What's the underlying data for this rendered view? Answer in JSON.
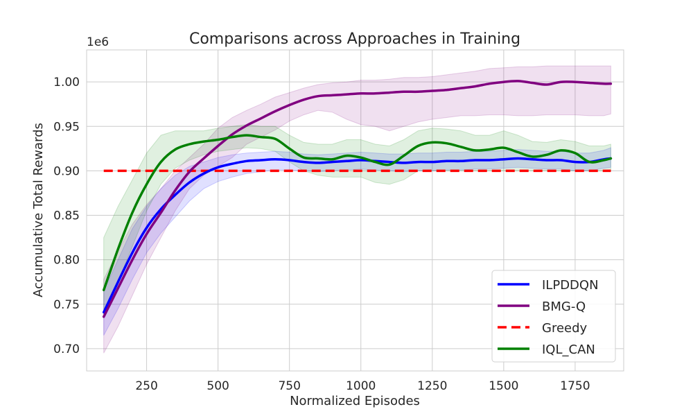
{
  "chart_data": {
    "type": "line",
    "title": "Comparisons across Approaches in Training",
    "xlabel": "Normalized Episodes",
    "ylabel": "Accumulative Total Rewards",
    "y_scale_label": "1e6",
    "xlim": [
      40,
      1920
    ],
    "ylim": [
      0.675,
      1.036
    ],
    "xticks": [
      250,
      500,
      750,
      1000,
      1250,
      1500,
      1750
    ],
    "yticks": [
      0.7,
      0.75,
      0.8,
      0.85,
      0.9,
      0.95,
      1.0
    ],
    "ytick_labels": [
      "0.70",
      "0.75",
      "0.80",
      "0.85",
      "0.90",
      "0.95",
      "1.00"
    ],
    "grid": true,
    "legend_position": "lower-right",
    "series": [
      {
        "name": "ILPDDQN",
        "color": "#0000ff",
        "style": "solid",
        "x": [
          100,
          150,
          200,
          250,
          300,
          350,
          400,
          450,
          500,
          550,
          600,
          650,
          700,
          750,
          800,
          850,
          900,
          950,
          1000,
          1050,
          1100,
          1150,
          1200,
          1250,
          1300,
          1350,
          1400,
          1450,
          1500,
          1550,
          1600,
          1650,
          1700,
          1750,
          1800,
          1850,
          1875
        ],
        "values": [
          0.741,
          0.775,
          0.808,
          0.836,
          0.857,
          0.873,
          0.887,
          0.897,
          0.904,
          0.908,
          0.911,
          0.912,
          0.913,
          0.912,
          0.91,
          0.909,
          0.91,
          0.911,
          0.912,
          0.911,
          0.91,
          0.909,
          0.91,
          0.91,
          0.911,
          0.911,
          0.912,
          0.912,
          0.913,
          0.914,
          0.913,
          0.912,
          0.912,
          0.91,
          0.91,
          0.913,
          0.914
        ],
        "lower": [
          0.715,
          0.745,
          0.778,
          0.808,
          0.83,
          0.848,
          0.866,
          0.88,
          0.888,
          0.893,
          0.897,
          0.899,
          0.901,
          0.901,
          0.9,
          0.899,
          0.9,
          0.901,
          0.902,
          0.901,
          0.9,
          0.899,
          0.9,
          0.9,
          0.901,
          0.901,
          0.902,
          0.902,
          0.903,
          0.904,
          0.903,
          0.902,
          0.902,
          0.9,
          0.9,
          0.903,
          0.904
        ],
        "upper": [
          0.765,
          0.8,
          0.835,
          0.86,
          0.88,
          0.895,
          0.905,
          0.91,
          0.915,
          0.918,
          0.92,
          0.921,
          0.922,
          0.921,
          0.919,
          0.918,
          0.919,
          0.92,
          0.921,
          0.92,
          0.919,
          0.919,
          0.92,
          0.92,
          0.921,
          0.921,
          0.922,
          0.922,
          0.923,
          0.924,
          0.923,
          0.922,
          0.922,
          0.92,
          0.92,
          0.923,
          0.926
        ]
      },
      {
        "name": "BMG-Q",
        "color": "#800080",
        "style": "solid",
        "x": [
          100,
          150,
          200,
          250,
          300,
          350,
          400,
          450,
          500,
          550,
          600,
          650,
          700,
          750,
          800,
          850,
          900,
          950,
          1000,
          1050,
          1100,
          1150,
          1200,
          1250,
          1300,
          1350,
          1400,
          1450,
          1500,
          1550,
          1600,
          1650,
          1700,
          1750,
          1800,
          1850,
          1875
        ],
        "values": [
          0.736,
          0.768,
          0.8,
          0.829,
          0.853,
          0.878,
          0.899,
          0.914,
          0.928,
          0.941,
          0.951,
          0.959,
          0.967,
          0.974,
          0.98,
          0.984,
          0.985,
          0.986,
          0.987,
          0.987,
          0.988,
          0.989,
          0.989,
          0.99,
          0.991,
          0.993,
          0.995,
          0.998,
          1.0,
          1.001,
          0.999,
          0.997,
          1.0,
          1.0,
          0.999,
          0.998,
          0.998
        ],
        "lower": [
          0.695,
          0.725,
          0.76,
          0.795,
          0.825,
          0.855,
          0.88,
          0.895,
          0.905,
          0.915,
          0.93,
          0.938,
          0.946,
          0.956,
          0.963,
          0.968,
          0.966,
          0.958,
          0.952,
          0.95,
          0.945,
          0.95,
          0.955,
          0.958,
          0.96,
          0.962,
          0.962,
          0.963,
          0.963,
          0.962,
          0.962,
          0.963,
          0.963,
          0.963,
          0.962,
          0.962,
          0.964
        ],
        "upper": [
          0.778,
          0.81,
          0.84,
          0.862,
          0.88,
          0.9,
          0.915,
          0.93,
          0.948,
          0.96,
          0.968,
          0.975,
          0.983,
          0.988,
          0.993,
          0.997,
          0.999,
          1.0,
          1.002,
          1.002,
          1.003,
          1.005,
          1.005,
          1.006,
          1.008,
          1.01,
          1.012,
          1.015,
          1.016,
          1.017,
          1.017,
          1.018,
          1.018,
          1.018,
          1.018,
          1.018,
          1.018
        ]
      },
      {
        "name": "Greedy",
        "color": "#ff0000",
        "style": "dashed",
        "x": [
          100,
          1875
        ],
        "values": [
          0.9,
          0.9
        ]
      },
      {
        "name": "IQL_CAN",
        "color": "#008000",
        "style": "solid",
        "x": [
          100,
          150,
          200,
          250,
          300,
          350,
          400,
          450,
          500,
          550,
          600,
          650,
          700,
          750,
          800,
          850,
          900,
          950,
          1000,
          1050,
          1100,
          1150,
          1200,
          1250,
          1300,
          1350,
          1400,
          1450,
          1500,
          1550,
          1600,
          1650,
          1700,
          1750,
          1800,
          1850,
          1875
        ],
        "values": [
          0.766,
          0.812,
          0.853,
          0.885,
          0.91,
          0.924,
          0.93,
          0.933,
          0.935,
          0.938,
          0.94,
          0.938,
          0.936,
          0.925,
          0.915,
          0.914,
          0.913,
          0.917,
          0.915,
          0.91,
          0.907,
          0.917,
          0.928,
          0.932,
          0.931,
          0.927,
          0.923,
          0.924,
          0.926,
          0.921,
          0.916,
          0.918,
          0.923,
          0.92,
          0.91,
          0.912,
          0.914
        ],
        "lower": [
          0.735,
          0.775,
          0.815,
          0.855,
          0.885,
          0.903,
          0.912,
          0.918,
          0.922,
          0.924,
          0.926,
          0.925,
          0.922,
          0.91,
          0.9,
          0.895,
          0.893,
          0.893,
          0.893,
          0.887,
          0.885,
          0.89,
          0.9,
          0.9,
          0.9,
          0.9,
          0.9,
          0.9,
          0.9,
          0.9,
          0.9,
          0.9,
          0.9,
          0.9,
          0.9,
          0.9,
          0.9
        ],
        "upper": [
          0.825,
          0.86,
          0.89,
          0.92,
          0.94,
          0.945,
          0.945,
          0.945,
          0.948,
          0.95,
          0.952,
          0.95,
          0.95,
          0.94,
          0.932,
          0.93,
          0.93,
          0.935,
          0.935,
          0.93,
          0.928,
          0.935,
          0.945,
          0.948,
          0.947,
          0.945,
          0.94,
          0.94,
          0.945,
          0.94,
          0.933,
          0.932,
          0.935,
          0.933,
          0.928,
          0.928,
          0.93
        ]
      }
    ]
  }
}
